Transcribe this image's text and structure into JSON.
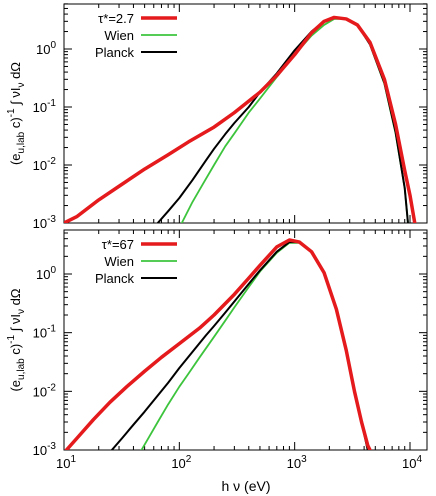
{
  "chart_data": [
    {
      "type": "line",
      "xscale": "log",
      "yscale": "log",
      "xlim": [
        10,
        15000
      ],
      "ylim": [
        0.001,
        6
      ],
      "xlabel": "",
      "ylabel": "(e_{u,lab} c)^{-1} ∫ νI_ν dΩ",
      "ylabel_parts": {
        "pre": "(e",
        "sub": "u,lab",
        "mid": " c)",
        "sup": "-1",
        "post1": " ∫ νI",
        "sub2": "ν",
        "post2": " dΩ"
      },
      "y_ticks": [
        {
          "value": 0.001,
          "mant": "10",
          "exp": "-3"
        },
        {
          "value": 0.01,
          "mant": "10",
          "exp": "-2"
        },
        {
          "value": 0.1,
          "mant": "10",
          "exp": "-1"
        },
        {
          "value": 1,
          "mant": "10",
          "exp": "0"
        }
      ],
      "legend_position": "top-left",
      "series": [
        {
          "name": "τ*=2.7",
          "legend_label": "τ*=2.7",
          "color": "#e41a1c",
          "width": 3.5,
          "x": [
            10,
            13,
            20,
            30,
            50,
            80,
            120,
            200,
            300,
            500,
            700,
            1000,
            1400,
            1800,
            2200,
            2800,
            3500,
            4500,
            6000,
            7500,
            9000,
            10000,
            11000
          ],
          "y": [
            0.001,
            0.0013,
            0.0025,
            0.0043,
            0.0085,
            0.015,
            0.025,
            0.045,
            0.08,
            0.18,
            0.35,
            0.8,
            1.9,
            3.0,
            3.5,
            3.3,
            2.6,
            1.3,
            0.3,
            0.05,
            0.008,
            0.003,
            0.001
          ]
        },
        {
          "name": "Wien",
          "legend_label": "Wien",
          "color": "#3dc43d",
          "width": 1.8,
          "x": [
            105,
            130,
            160,
            200,
            250,
            300,
            400,
            500,
            700,
            1000,
            1400,
            1800,
            2200,
            2800,
            3500,
            4500,
            6000,
            7500,
            9000,
            9600
          ],
          "y": [
            0.001,
            0.0023,
            0.0047,
            0.01,
            0.021,
            0.035,
            0.08,
            0.14,
            0.33,
            0.8,
            1.7,
            2.6,
            3.3,
            3.35,
            2.6,
            1.2,
            0.25,
            0.035,
            0.004,
            0.001
          ]
        },
        {
          "name": "Planck",
          "legend_label": "Planck",
          "color": "#000000",
          "width": 2.0,
          "x": [
            65,
            80,
            100,
            130,
            170,
            200,
            250,
            300,
            400,
            500,
            700,
            1000,
            1400,
            1800,
            2200,
            2800,
            3500,
            4500,
            6000,
            7500,
            9000,
            9600
          ],
          "y": [
            0.001,
            0.0016,
            0.0027,
            0.0055,
            0.012,
            0.019,
            0.034,
            0.053,
            0.1,
            0.18,
            0.38,
            0.95,
            2.0,
            3.0,
            3.5,
            3.3,
            2.6,
            1.2,
            0.26,
            0.037,
            0.004,
            0.001
          ]
        }
      ]
    },
    {
      "type": "line",
      "xscale": "log",
      "yscale": "log",
      "xlim": [
        10,
        15000
      ],
      "ylim": [
        0.001,
        6
      ],
      "xlabel": "h ν (eV)",
      "ylabel": "(e_{u,lab} c)^{-1} ∫ νI_ν dΩ",
      "ylabel_parts": {
        "pre": "(e",
        "sub": "u,lab",
        "mid": " c)",
        "sup": "-1",
        "post1": " ∫ νI",
        "sub2": "ν",
        "post2": " dΩ"
      },
      "x_ticks": [
        {
          "value": 10,
          "mant": "10",
          "exp": "1"
        },
        {
          "value": 100,
          "mant": "10",
          "exp": "2"
        },
        {
          "value": 1000,
          "mant": "10",
          "exp": "3"
        },
        {
          "value": 10000,
          "mant": "10",
          "exp": "4"
        }
      ],
      "y_ticks": [
        {
          "value": 0.001,
          "mant": "10",
          "exp": "-3"
        },
        {
          "value": 0.01,
          "mant": "10",
          "exp": "-2"
        },
        {
          "value": 0.1,
          "mant": "10",
          "exp": "-1"
        },
        {
          "value": 1,
          "mant": "10",
          "exp": "0"
        }
      ],
      "legend_position": "top-left",
      "series": [
        {
          "name": "τ*=67",
          "legend_label": "τ*=67",
          "color": "#e41a1c",
          "width": 3.5,
          "x": [
            10.5,
            13,
            18,
            25,
            35,
            50,
            70,
            100,
            150,
            200,
            300,
            400,
            500,
            700,
            900,
            1100,
            1400,
            1800,
            2300,
            2800,
            3300,
            3800,
            4300,
            4500
          ],
          "y": [
            0.001,
            0.0016,
            0.0033,
            0.0065,
            0.012,
            0.022,
            0.038,
            0.065,
            0.12,
            0.2,
            0.45,
            0.85,
            1.4,
            2.9,
            3.8,
            3.5,
            2.4,
            1.05,
            0.25,
            0.05,
            0.01,
            0.003,
            0.0012,
            0.001
          ]
        },
        {
          "name": "Wien",
          "legend_label": "Wien",
          "color": "#3dc43d",
          "width": 1.8,
          "x": [
            47,
            55,
            65,
            80,
            100,
            120,
            150,
            200,
            250,
            300,
            400,
            500,
            700,
            900,
            1100,
            1400,
            1800,
            2300,
            2800,
            3300,
            3800,
            4300
          ],
          "y": [
            0.001,
            0.0017,
            0.003,
            0.006,
            0.012,
            0.02,
            0.038,
            0.085,
            0.16,
            0.27,
            0.6,
            1.1,
            2.3,
            3.4,
            3.4,
            2.4,
            1.05,
            0.25,
            0.05,
            0.01,
            0.003,
            0.001
          ]
        },
        {
          "name": "Planck",
          "legend_label": "Planck",
          "color": "#000000",
          "width": 2.0,
          "x": [
            26,
            32,
            40,
            50,
            65,
            80,
            100,
            130,
            170,
            200,
            250,
            300,
            400,
            500,
            700,
            900,
            1100,
            1400,
            1800,
            2300,
            2800,
            3300,
            3800,
            4300
          ],
          "y": [
            0.001,
            0.0016,
            0.0027,
            0.0045,
            0.0085,
            0.014,
            0.025,
            0.047,
            0.09,
            0.13,
            0.22,
            0.34,
            0.68,
            1.15,
            2.4,
            3.5,
            3.5,
            2.4,
            1.05,
            0.25,
            0.05,
            0.01,
            0.003,
            0.001
          ]
        }
      ]
    }
  ]
}
